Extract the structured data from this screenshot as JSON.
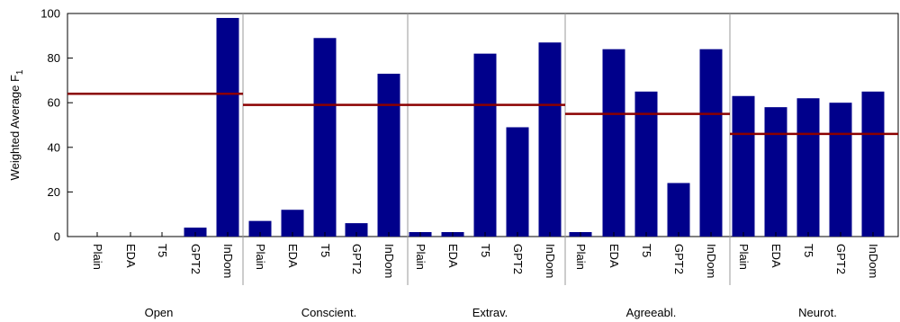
{
  "chart_data": {
    "type": "bar",
    "ylabel": "Weighted Average F",
    "ylabel_subscript": "1",
    "ylim": [
      0,
      100
    ],
    "yticks": [
      "0",
      "20",
      "40",
      "60",
      "80",
      "100"
    ],
    "bar_color": "#00008b",
    "baseline_color": "#8b0000",
    "grid": false,
    "groups": [
      {
        "name": "Open",
        "categories": [
          "Plain",
          "EDA",
          "T5",
          "GPT2",
          "InDom"
        ],
        "values": [
          0,
          0,
          0,
          4,
          98
        ],
        "baseline": 64
      },
      {
        "name": "Conscient.",
        "categories": [
          "Plain",
          "EDA",
          "T5",
          "GPT2",
          "InDom"
        ],
        "values": [
          7,
          12,
          89,
          6,
          73
        ],
        "baseline": 59
      },
      {
        "name": "Extrav.",
        "categories": [
          "Plain",
          "EDA",
          "T5",
          "GPT2",
          "InDom"
        ],
        "values": [
          2,
          2,
          82,
          49,
          87
        ],
        "baseline": 59
      },
      {
        "name": "Agreeabl.",
        "categories": [
          "Plain",
          "EDA",
          "T5",
          "GPT2",
          "InDom"
        ],
        "values": [
          2,
          84,
          65,
          24,
          84
        ],
        "baseline": 55
      },
      {
        "name": "Neurot.",
        "categories": [
          "Plain",
          "EDA",
          "T5",
          "GPT2",
          "InDom"
        ],
        "values": [
          63,
          58,
          62,
          60,
          65
        ],
        "baseline": 46
      }
    ]
  }
}
